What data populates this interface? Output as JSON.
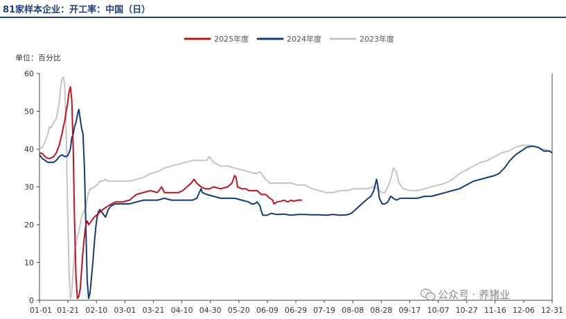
{
  "chart_data": {
    "type": "line",
    "title": "81家样本企业：开工率：中国（日）",
    "ylabel": "单位：百分比",
    "ylim": [
      0,
      60
    ],
    "yticks": [
      "0",
      "10",
      "20",
      "30",
      "40",
      "50",
      "60"
    ],
    "xticks": [
      "01-01",
      "01-21",
      "02-10",
      "03-01",
      "03-21",
      "04-10",
      "04-30",
      "05-20",
      "06-09",
      "06-29",
      "07-19",
      "08-08",
      "08-28",
      "09-17",
      "10-07",
      "10-27",
      "11-16",
      "12-06",
      "12-31"
    ],
    "x_domain_days": [
      1,
      366
    ],
    "grid": false,
    "legend_position": "top",
    "series": [
      {
        "name": "2025年度",
        "color": "#c0121d",
        "points": [
          [
            1,
            39
          ],
          [
            3,
            38.8
          ],
          [
            5,
            38
          ],
          [
            7,
            37.5
          ],
          [
            9,
            37.6
          ],
          [
            11,
            38
          ],
          [
            13,
            39
          ],
          [
            15,
            41
          ],
          [
            17,
            44
          ],
          [
            18,
            46
          ],
          [
            19,
            47.5
          ],
          [
            20,
            50
          ],
          [
            21,
            52
          ],
          [
            22,
            55
          ],
          [
            23,
            56.5
          ],
          [
            24,
            53
          ],
          [
            25,
            40
          ],
          [
            26,
            20
          ],
          [
            27,
            6
          ],
          [
            28,
            0.5
          ],
          [
            29,
            1
          ],
          [
            30,
            3
          ],
          [
            31,
            8
          ],
          [
            32,
            13
          ],
          [
            33,
            17
          ],
          [
            34,
            20
          ],
          [
            35,
            21
          ],
          [
            36,
            20
          ],
          [
            37,
            20.5
          ],
          [
            38,
            21
          ],
          [
            40,
            22
          ],
          [
            43,
            23
          ],
          [
            46,
            24
          ],
          [
            50,
            25
          ],
          [
            55,
            26
          ],
          [
            60,
            26
          ],
          [
            65,
            26.5
          ],
          [
            70,
            28
          ],
          [
            75,
            28.5
          ],
          [
            80,
            29
          ],
          [
            85,
            28.5
          ],
          [
            88,
            30
          ],
          [
            90,
            28.5
          ],
          [
            95,
            28.5
          ],
          [
            100,
            28.5
          ],
          [
            103,
            29
          ],
          [
            106,
            30
          ],
          [
            109,
            31
          ],
          [
            111,
            32
          ],
          [
            113,
            31
          ],
          [
            116,
            30
          ],
          [
            119,
            29.5
          ],
          [
            122,
            29.5
          ],
          [
            125,
            30
          ],
          [
            130,
            29.5
          ],
          [
            135,
            30
          ],
          [
            138,
            31
          ],
          [
            140,
            33
          ],
          [
            141,
            32.5
          ],
          [
            142,
            30
          ],
          [
            145,
            29.5
          ],
          [
            148,
            29.5
          ],
          [
            150,
            29
          ],
          [
            153,
            29
          ],
          [
            156,
            29
          ],
          [
            159,
            28
          ],
          [
            162,
            28
          ],
          [
            165,
            27
          ],
          [
            167,
            26.5
          ],
          [
            168,
            25.5
          ],
          [
            170,
            26
          ],
          [
            173,
            26.2
          ],
          [
            175,
            26.5
          ],
          [
            178,
            26
          ],
          [
            180,
            26.5
          ],
          [
            182,
            26.2
          ],
          [
            185,
            26.5
          ],
          [
            188,
            26.5
          ]
        ]
      },
      {
        "name": "2024年度",
        "color": "#0f3b7d",
        "points": [
          [
            1,
            38.5
          ],
          [
            3,
            37.5
          ],
          [
            5,
            37
          ],
          [
            7,
            36.5
          ],
          [
            9,
            36.5
          ],
          [
            11,
            36.5
          ],
          [
            13,
            37
          ],
          [
            15,
            38
          ],
          [
            17,
            38.5
          ],
          [
            19,
            38
          ],
          [
            21,
            38.2
          ],
          [
            22,
            39
          ],
          [
            23,
            40
          ],
          [
            24,
            43
          ],
          [
            25,
            44
          ],
          [
            26,
            46
          ],
          [
            27,
            47
          ],
          [
            28,
            49
          ],
          [
            29,
            50.5
          ],
          [
            30,
            48
          ],
          [
            31,
            45.5
          ],
          [
            32,
            44
          ],
          [
            33,
            35
          ],
          [
            34,
            20
          ],
          [
            35,
            5
          ],
          [
            36,
            0.5
          ],
          [
            37,
            2
          ],
          [
            38,
            6
          ],
          [
            39,
            10
          ],
          [
            40,
            15
          ],
          [
            41,
            19
          ],
          [
            42,
            22
          ],
          [
            43,
            23.5
          ],
          [
            44,
            24
          ],
          [
            46,
            23
          ],
          [
            48,
            22
          ],
          [
            50,
            24
          ],
          [
            52,
            25
          ],
          [
            55,
            25.5
          ],
          [
            60,
            25.5
          ],
          [
            65,
            25.5
          ],
          [
            70,
            26
          ],
          [
            75,
            26.5
          ],
          [
            80,
            26.5
          ],
          [
            85,
            26.5
          ],
          [
            90,
            27
          ],
          [
            95,
            26.5
          ],
          [
            100,
            26.5
          ],
          [
            105,
            26.5
          ],
          [
            110,
            26.5
          ],
          [
            113,
            27
          ],
          [
            116,
            29.5
          ],
          [
            117,
            28.5
          ],
          [
            120,
            28
          ],
          [
            125,
            27.5
          ],
          [
            130,
            27
          ],
          [
            135,
            27
          ],
          [
            140,
            27
          ],
          [
            145,
            26.5
          ],
          [
            150,
            26
          ],
          [
            152,
            25.5
          ],
          [
            154,
            25.5
          ],
          [
            156,
            26
          ],
          [
            158,
            25
          ],
          [
            159,
            23.5
          ],
          [
            160,
            22.5
          ],
          [
            163,
            22.5
          ],
          [
            166,
            23
          ],
          [
            170,
            22.7
          ],
          [
            175,
            22.8
          ],
          [
            180,
            22.5
          ],
          [
            185,
            22.7
          ],
          [
            190,
            22.7
          ],
          [
            195,
            22.6
          ],
          [
            200,
            22.6
          ],
          [
            205,
            22.5
          ],
          [
            210,
            22.7
          ],
          [
            215,
            22.5
          ],
          [
            220,
            22.6
          ],
          [
            223,
            23
          ],
          [
            226,
            24
          ],
          [
            229,
            25
          ],
          [
            232,
            26
          ],
          [
            235,
            27
          ],
          [
            237,
            27.5
          ],
          [
            239,
            29
          ],
          [
            240,
            30.5
          ],
          [
            241,
            32
          ],
          [
            242,
            30
          ],
          [
            243,
            27
          ],
          [
            245,
            25.5
          ],
          [
            247,
            25.5
          ],
          [
            249,
            26
          ],
          [
            251,
            27.5
          ],
          [
            253,
            27
          ],
          [
            255,
            26.5
          ],
          [
            258,
            27
          ],
          [
            262,
            27
          ],
          [
            266,
            27
          ],
          [
            270,
            27
          ],
          [
            275,
            27.5
          ],
          [
            280,
            27.5
          ],
          [
            285,
            28
          ],
          [
            290,
            28.5
          ],
          [
            295,
            29
          ],
          [
            300,
            29.5
          ],
          [
            305,
            30.5
          ],
          [
            310,
            31.5
          ],
          [
            315,
            32
          ],
          [
            320,
            32.5
          ],
          [
            325,
            33
          ],
          [
            328,
            33.5
          ],
          [
            332,
            35
          ],
          [
            336,
            37
          ],
          [
            340,
            38.5
          ],
          [
            344,
            39.5
          ],
          [
            348,
            40.5
          ],
          [
            352,
            40.8
          ],
          [
            356,
            40.5
          ],
          [
            360,
            39.5
          ],
          [
            364,
            39.5
          ],
          [
            366,
            39
          ]
        ]
      },
      {
        "name": "2023年度",
        "color": "#c4c4c4",
        "points": [
          [
            1,
            40
          ],
          [
            3,
            40.5
          ],
          [
            5,
            42
          ],
          [
            7,
            44
          ],
          [
            8,
            46
          ],
          [
            9,
            45.5
          ],
          [
            11,
            47
          ],
          [
            13,
            48
          ],
          [
            15,
            52
          ],
          [
            16,
            56
          ],
          [
            17,
            58.5
          ],
          [
            18,
            59
          ],
          [
            19,
            57
          ],
          [
            20,
            45
          ],
          [
            21,
            25
          ],
          [
            22,
            8
          ],
          [
            23,
            0.5
          ],
          [
            24,
            2
          ],
          [
            25,
            8
          ],
          [
            26,
            13
          ],
          [
            27,
            15
          ],
          [
            28,
            17
          ],
          [
            29,
            18
          ],
          [
            30,
            20
          ],
          [
            31,
            22
          ],
          [
            32,
            23
          ],
          [
            33,
            24
          ],
          [
            34,
            24.5
          ],
          [
            35,
            27
          ],
          [
            36,
            28.5
          ],
          [
            37,
            29.5
          ],
          [
            38,
            29.5
          ],
          [
            40,
            30
          ],
          [
            42,
            30.5
          ],
          [
            44,
            31.5
          ],
          [
            46,
            31.5
          ],
          [
            48,
            32
          ],
          [
            50,
            31.5
          ],
          [
            55,
            31.5
          ],
          [
            60,
            31.5
          ],
          [
            65,
            31.5
          ],
          [
            70,
            32
          ],
          [
            75,
            32.5
          ],
          [
            80,
            33.5
          ],
          [
            85,
            34
          ],
          [
            90,
            35
          ],
          [
            95,
            35.5
          ],
          [
            100,
            36
          ],
          [
            105,
            36.5
          ],
          [
            110,
            37
          ],
          [
            115,
            37
          ],
          [
            120,
            37
          ],
          [
            122,
            38
          ],
          [
            125,
            36.5
          ],
          [
            130,
            35.5
          ],
          [
            135,
            35.5
          ],
          [
            140,
            35
          ],
          [
            145,
            34.5
          ],
          [
            150,
            34
          ],
          [
            155,
            33.5
          ],
          [
            158,
            34
          ],
          [
            160,
            33
          ],
          [
            162,
            32
          ],
          [
            165,
            31
          ],
          [
            168,
            31
          ],
          [
            172,
            31
          ],
          [
            176,
            31
          ],
          [
            180,
            31
          ],
          [
            185,
            30.5
          ],
          [
            190,
            30.5
          ],
          [
            195,
            29.5
          ],
          [
            200,
            29
          ],
          [
            205,
            28.5
          ],
          [
            210,
            28.5
          ],
          [
            215,
            29
          ],
          [
            220,
            29
          ],
          [
            225,
            29.5
          ],
          [
            230,
            29.5
          ],
          [
            235,
            29.5
          ],
          [
            238,
            30
          ],
          [
            240,
            30
          ],
          [
            243,
            29
          ],
          [
            245,
            28.5
          ],
          [
            247,
            28.5
          ],
          [
            249,
            30
          ],
          [
            251,
            32
          ],
          [
            253,
            35
          ],
          [
            255,
            34
          ],
          [
            257,
            31
          ],
          [
            260,
            29.5
          ],
          [
            265,
            29
          ],
          [
            270,
            29
          ],
          [
            275,
            29.5
          ],
          [
            280,
            30
          ],
          [
            285,
            30.5
          ],
          [
            290,
            31
          ],
          [
            295,
            32
          ],
          [
            300,
            33.5
          ],
          [
            305,
            34.5
          ],
          [
            310,
            35.5
          ],
          [
            315,
            36.5
          ],
          [
            320,
            37
          ],
          [
            325,
            38
          ],
          [
            330,
            39
          ],
          [
            335,
            39.5
          ],
          [
            340,
            40.5
          ],
          [
            345,
            41
          ],
          [
            350,
            41
          ],
          [
            355,
            40.5
          ],
          [
            360,
            40
          ],
          [
            364,
            39.5
          ],
          [
            366,
            39.5
          ]
        ]
      }
    ]
  },
  "watermark": {
    "text": "公众号 · 养猪业",
    "icon": "wechat-icon"
  }
}
